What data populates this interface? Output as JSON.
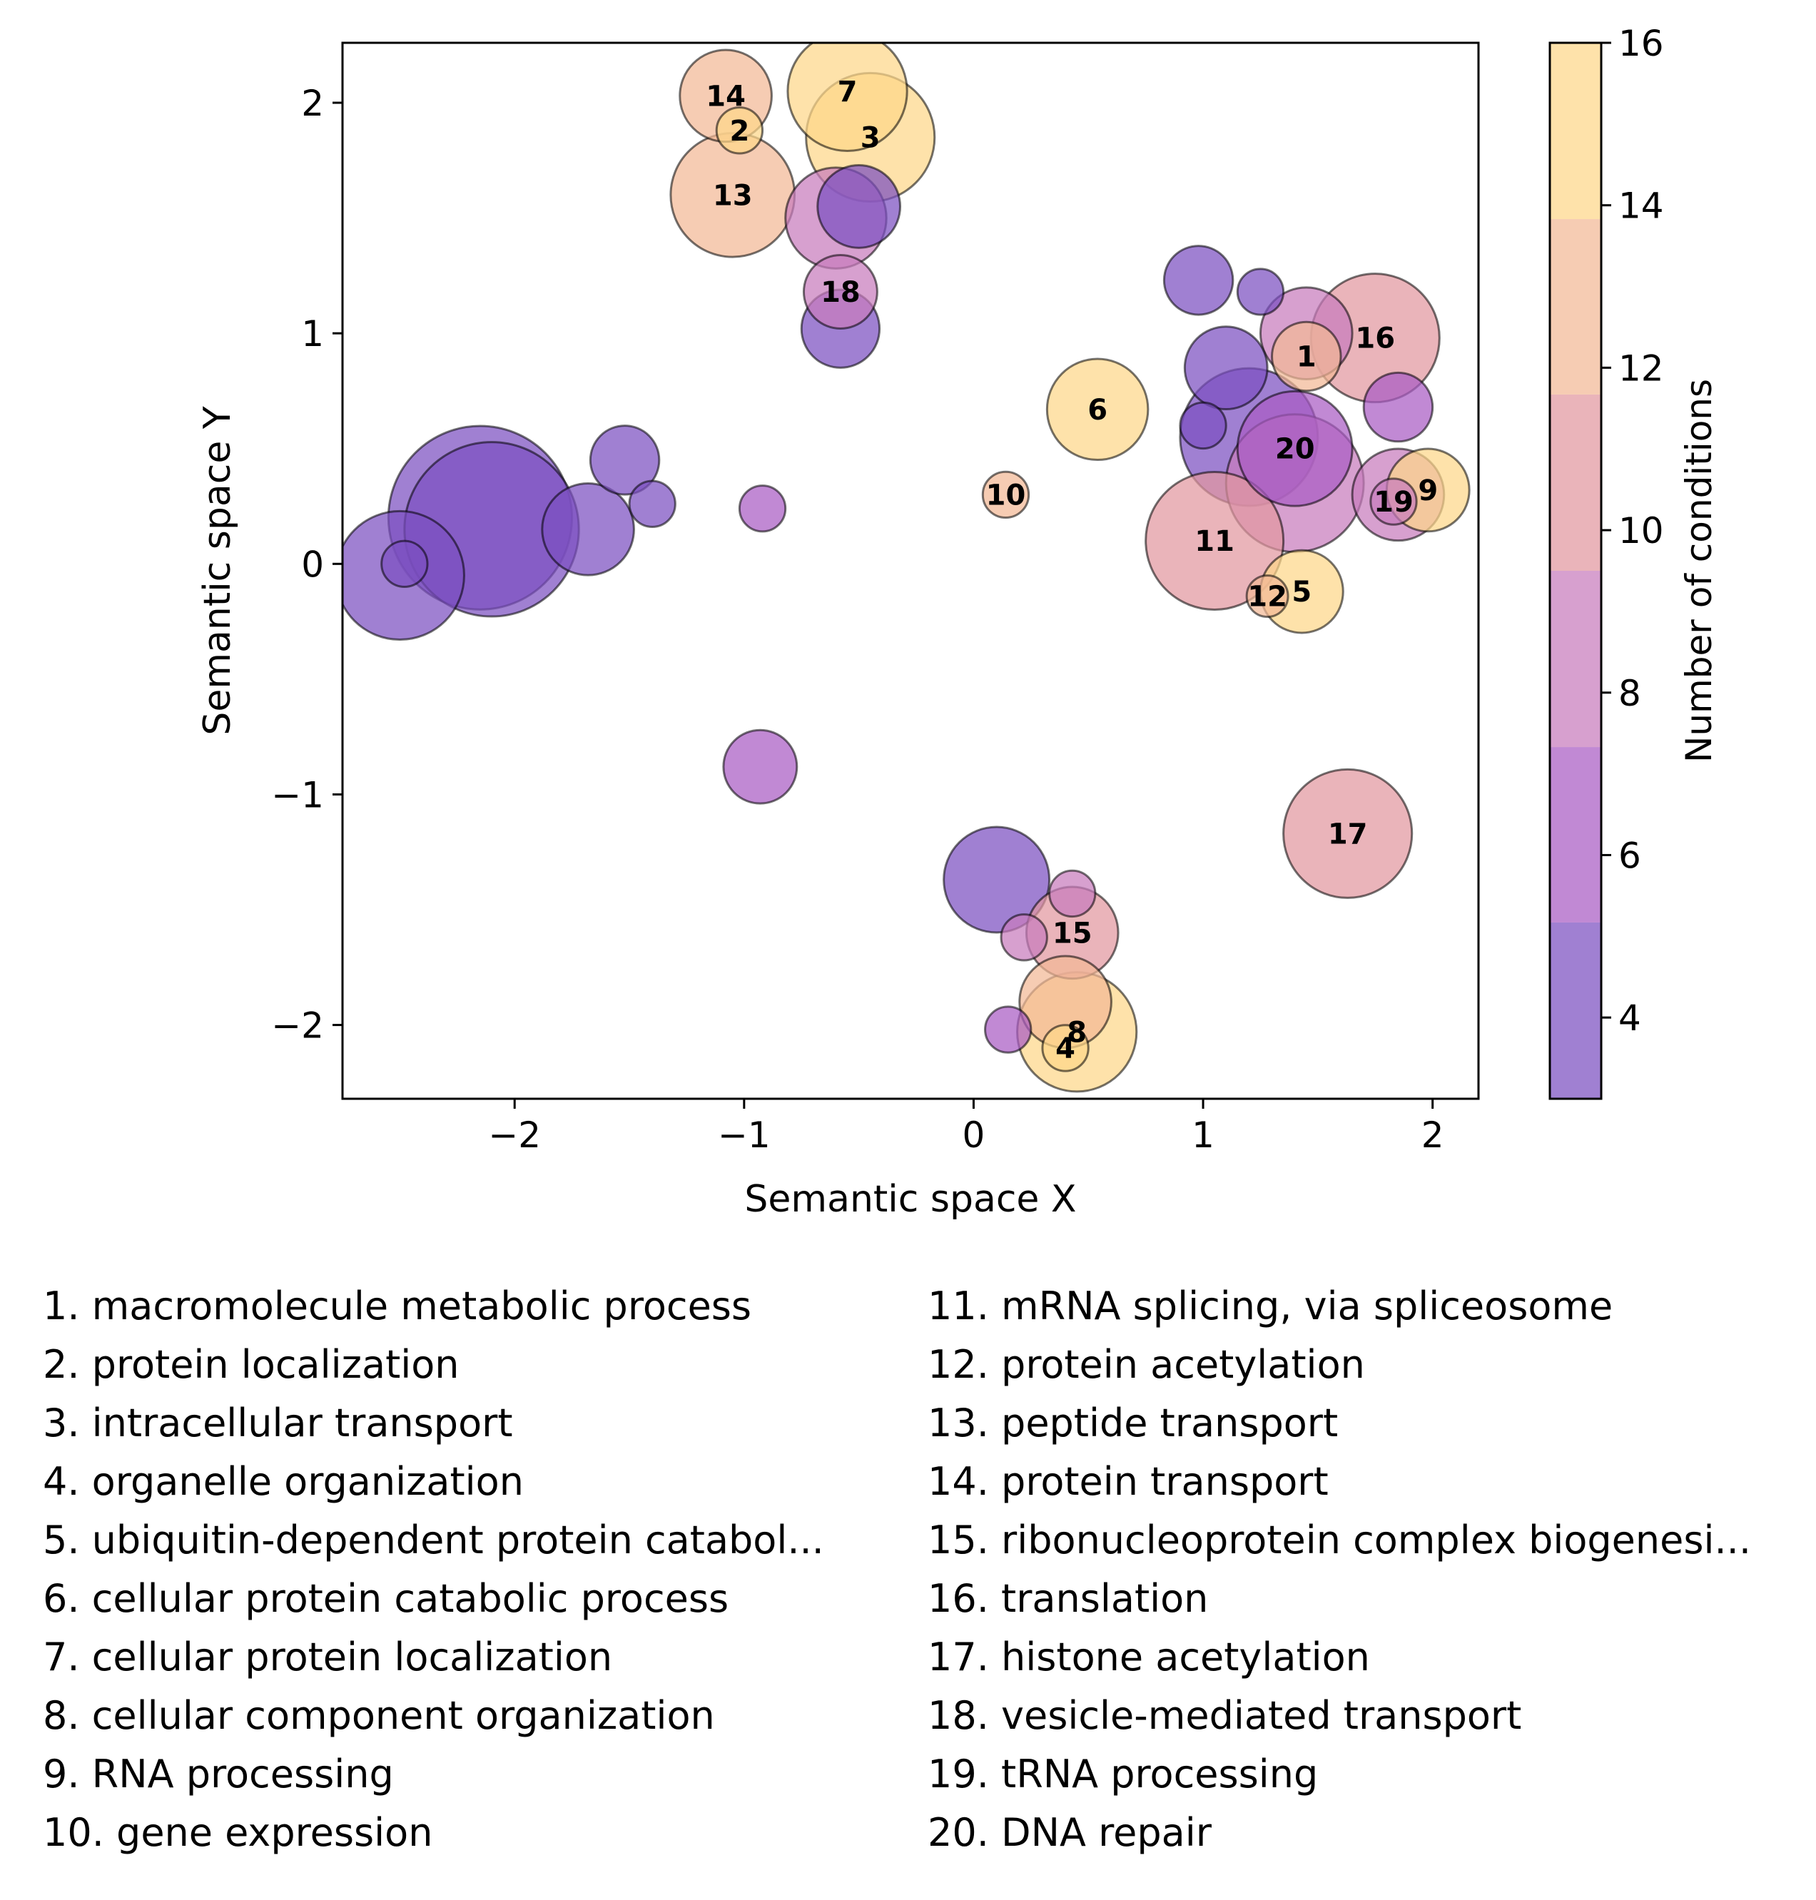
{
  "chart_data": {
    "type": "scatter",
    "xlabel": "Semantic space X",
    "ylabel": "Semantic space Y",
    "xlim": [
      -2.75,
      2.2
    ],
    "ylim": [
      -2.32,
      2.26
    ],
    "xticks": [
      -2,
      -1,
      0,
      1,
      2
    ],
    "xtick_labels": [
      "−2",
      "−1",
      "0",
      "1",
      "2"
    ],
    "yticks": [
      -2,
      -1,
      0,
      1,
      2
    ],
    "ytick_labels": [
      "−2",
      "−1",
      "0",
      "1",
      "2"
    ],
    "grid": false,
    "colorbar": {
      "label": "Number of conditions",
      "min": 3,
      "max": 16,
      "ticks": [
        4,
        6,
        8,
        10,
        12,
        14,
        16
      ],
      "tick_labels": [
        "4",
        "6",
        "8",
        "10",
        "12",
        "14",
        "16"
      ],
      "bins": [
        {
          "from": 3,
          "to": 5.17,
          "color": "#7b4fc0"
        },
        {
          "from": 5.17,
          "to": 7.33,
          "color": "#a95cc4"
        },
        {
          "from": 7.33,
          "to": 9.5,
          "color": "#c77bbd"
        },
        {
          "from": 9.5,
          "to": 11.67,
          "color": "#e2979f"
        },
        {
          "from": 11.67,
          "to": 13.83,
          "color": "#f3b896"
        },
        {
          "from": 13.83,
          "to": 16,
          "color": "#fdd789"
        }
      ]
    },
    "points": [
      {
        "x": -2.15,
        "y": 0.2,
        "r": 0.4,
        "n": 4,
        "label": ""
      },
      {
        "x": -2.5,
        "y": -0.05,
        "r": 0.28,
        "n": 4,
        "label": ""
      },
      {
        "x": -2.1,
        "y": 0.15,
        "r": 0.38,
        "n": 4,
        "label": ""
      },
      {
        "x": -2.48,
        "y": 0.0,
        "r": 0.1,
        "n": 4,
        "label": ""
      },
      {
        "x": -1.52,
        "y": 0.45,
        "r": 0.15,
        "n": 4,
        "label": ""
      },
      {
        "x": -1.68,
        "y": 0.15,
        "r": 0.2,
        "n": 4,
        "label": ""
      },
      {
        "x": -1.4,
        "y": 0.26,
        "r": 0.1,
        "n": 4,
        "label": ""
      },
      {
        "x": -0.92,
        "y": 0.24,
        "r": 0.1,
        "n": 6,
        "label": ""
      },
      {
        "x": -0.93,
        "y": -0.88,
        "r": 0.16,
        "n": 6,
        "label": ""
      },
      {
        "x": -1.08,
        "y": 2.03,
        "r": 0.2,
        "n": 12,
        "label": "14"
      },
      {
        "x": -0.55,
        "y": 2.05,
        "r": 0.26,
        "n": 15,
        "label": "7"
      },
      {
        "x": -1.05,
        "y": 1.6,
        "r": 0.27,
        "n": 12,
        "label": "13"
      },
      {
        "x": -0.45,
        "y": 1.85,
        "r": 0.28,
        "n": 15,
        "label": "3"
      },
      {
        "x": -0.6,
        "y": 1.5,
        "r": 0.22,
        "n": 8,
        "label": ""
      },
      {
        "x": -0.5,
        "y": 1.55,
        "r": 0.18,
        "n": 4,
        "label": ""
      },
      {
        "x": -0.58,
        "y": 1.02,
        "r": 0.17,
        "n": 4,
        "label": ""
      },
      {
        "x": -0.58,
        "y": 1.18,
        "r": 0.16,
        "n": 8,
        "label": "18"
      },
      {
        "x": -1.02,
        "y": 1.88,
        "r": 0.1,
        "n": 15,
        "label": "2"
      },
      {
        "x": 0.98,
        "y": 1.23,
        "r": 0.15,
        "n": 4,
        "label": ""
      },
      {
        "x": 1.25,
        "y": 1.18,
        "r": 0.1,
        "n": 5,
        "label": ""
      },
      {
        "x": 1.75,
        "y": 0.98,
        "r": 0.28,
        "n": 10,
        "label": "16"
      },
      {
        "x": 1.45,
        "y": 1.0,
        "r": 0.2,
        "n": 9,
        "label": ""
      },
      {
        "x": 1.1,
        "y": 0.85,
        "r": 0.18,
        "n": 5,
        "label": ""
      },
      {
        "x": 0.54,
        "y": 0.67,
        "r": 0.22,
        "n": 15,
        "label": "6"
      },
      {
        "x": 1.45,
        "y": 0.9,
        "r": 0.15,
        "n": 12,
        "label": "1"
      },
      {
        "x": 1.85,
        "y": 0.68,
        "r": 0.15,
        "n": 7,
        "label": ""
      },
      {
        "x": 1.2,
        "y": 0.55,
        "r": 0.3,
        "n": 5,
        "label": ""
      },
      {
        "x": 1.4,
        "y": 0.5,
        "r": 0.25,
        "n": 7,
        "label": "20"
      },
      {
        "x": 1.0,
        "y": 0.6,
        "r": 0.1,
        "n": 5,
        "label": ""
      },
      {
        "x": 0.14,
        "y": 0.3,
        "r": 0.1,
        "n": 12,
        "label": "10"
      },
      {
        "x": 1.4,
        "y": 0.35,
        "r": 0.3,
        "n": 9,
        "label": ""
      },
      {
        "x": 1.85,
        "y": 0.3,
        "r": 0.2,
        "n": 8,
        "label": ""
      },
      {
        "x": 1.98,
        "y": 0.32,
        "r": 0.18,
        "n": 14,
        "label": "9"
      },
      {
        "x": 1.83,
        "y": 0.27,
        "r": 0.1,
        "n": 9,
        "label": "19"
      },
      {
        "x": 1.05,
        "y": 0.1,
        "r": 0.3,
        "n": 11,
        "label": "11"
      },
      {
        "x": 1.43,
        "y": -0.12,
        "r": 0.18,
        "n": 15,
        "label": "5"
      },
      {
        "x": 1.28,
        "y": -0.14,
        "r": 0.09,
        "n": 12,
        "label": "12"
      },
      {
        "x": 1.63,
        "y": -1.17,
        "r": 0.28,
        "n": 10,
        "label": "17"
      },
      {
        "x": 0.1,
        "y": -1.37,
        "r": 0.23,
        "n": 4,
        "label": ""
      },
      {
        "x": 0.43,
        "y": -1.6,
        "r": 0.2,
        "n": 10,
        "label": "15"
      },
      {
        "x": 0.43,
        "y": -1.43,
        "r": 0.1,
        "n": 9,
        "label": ""
      },
      {
        "x": 0.22,
        "y": -1.62,
        "r": 0.1,
        "n": 8,
        "label": ""
      },
      {
        "x": 0.4,
        "y": -1.9,
        "r": 0.2,
        "n": 13,
        "label": ""
      },
      {
        "x": 0.15,
        "y": -2.02,
        "r": 0.1,
        "n": 6,
        "label": ""
      },
      {
        "x": 0.45,
        "y": -2.03,
        "r": 0.26,
        "n": 15,
        "label": "8"
      },
      {
        "x": 0.4,
        "y": -2.1,
        "r": 0.1,
        "n": 15,
        "label": "4"
      }
    ]
  },
  "legend": {
    "left": [
      "1. macromolecule metabolic process",
      "2. protein localization",
      "3. intracellular transport",
      "4. organelle organization",
      "5. ubiquitin-dependent protein catabol...",
      "6. cellular protein catabolic process",
      "7. cellular protein localization",
      "8. cellular component organization",
      "9. RNA processing",
      "10. gene expression"
    ],
    "right": [
      "11. mRNA splicing, via spliceosome",
      "12. protein acetylation",
      "13. peptide transport",
      "14. protein transport",
      "15. ribonucleoprotein complex biogenesi...",
      "16. translation",
      "17. histone acetylation",
      "18. vesicle-mediated transport",
      "19. tRNA processing",
      "20. DNA repair"
    ]
  }
}
